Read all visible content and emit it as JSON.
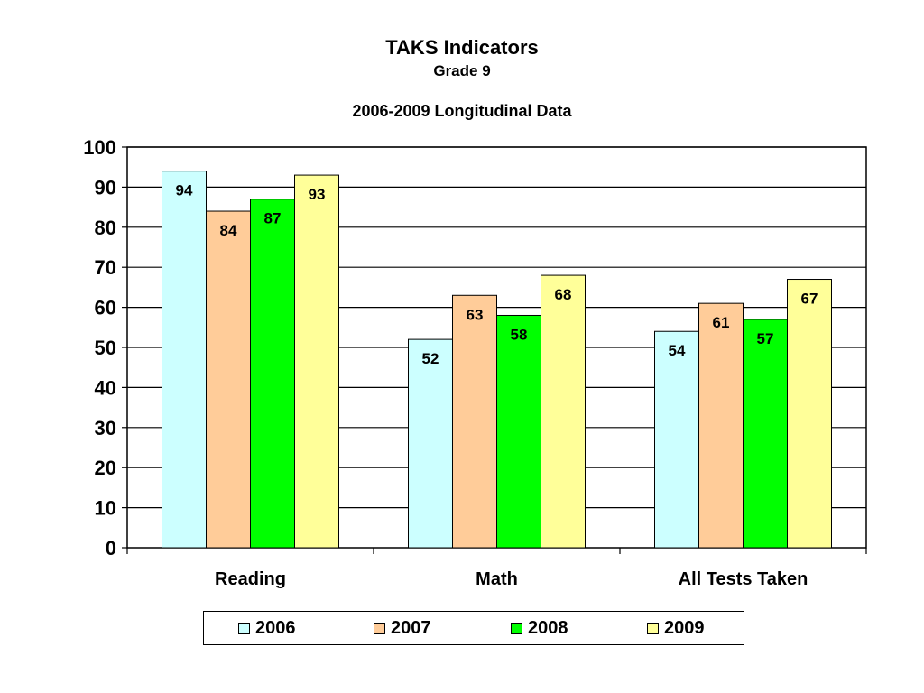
{
  "chart_data": {
    "type": "bar",
    "title": "TAKS Indicators",
    "subtitle": "Grade 9",
    "subtitle2": "2006-2009 Longitudinal Data",
    "xlabel": "",
    "ylabel": "",
    "categories": [
      "Reading",
      "Math",
      "All Tests Taken"
    ],
    "series": [
      {
        "name": "2006",
        "color": "#CCFFFF",
        "values": [
          94,
          52,
          54
        ]
      },
      {
        "name": "2007",
        "color": "#FFCC99",
        "values": [
          84,
          63,
          61
        ]
      },
      {
        "name": "2008",
        "color": "#00FF00",
        "values": [
          87,
          58,
          57
        ]
      },
      {
        "name": "2009",
        "color": "#FFFF99",
        "values": [
          93,
          68,
          67
        ]
      }
    ],
    "ylim": [
      0,
      100
    ],
    "yticks": [
      0,
      10,
      20,
      30,
      40,
      50,
      60,
      70,
      80,
      90,
      100
    ],
    "grid": true,
    "legend_position": "bottom"
  }
}
